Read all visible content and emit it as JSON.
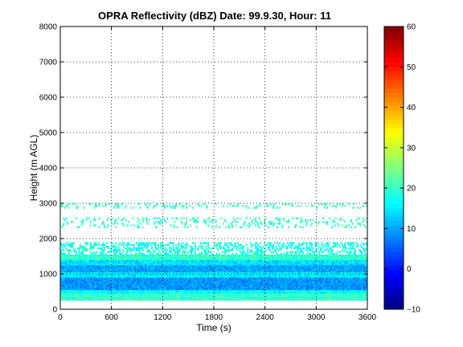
{
  "chart_data": {
    "type": "heatmap",
    "title": "OPRA Reflectivity (dBZ)  Date: 99.9.30, Hour: 11",
    "xlabel": "Time (s)",
    "ylabel": "Height (m AGL)",
    "xlim": [
      0,
      3600
    ],
    "ylim": [
      0,
      8000
    ],
    "xticks": [
      0,
      600,
      1200,
      1800,
      2400,
      3000,
      3600
    ],
    "yticks": [
      0,
      1000,
      2000,
      3000,
      4000,
      5000,
      6000,
      7000,
      8000
    ],
    "grid": true,
    "colorbar": {
      "min": -10,
      "max": 60,
      "ticks": [
        -10,
        0,
        10,
        20,
        30,
        40,
        50,
        60
      ],
      "colormap": "jet",
      "location": "right"
    },
    "height_layers_m_dbz": [
      {
        "bottom": 0,
        "top": 250,
        "dbz": null
      },
      {
        "bottom": 250,
        "top": 450,
        "dbz": 20
      },
      {
        "bottom": 450,
        "top": 550,
        "dbz": 16
      },
      {
        "bottom": 550,
        "top": 900,
        "dbz": 9
      },
      {
        "bottom": 900,
        "top": 1050,
        "dbz": 15
      },
      {
        "bottom": 1050,
        "top": 1250,
        "dbz": 10
      },
      {
        "bottom": 1250,
        "top": 1400,
        "dbz": 14
      },
      {
        "bottom": 1400,
        "top": 1550,
        "dbz": 20
      },
      {
        "bottom": 1550,
        "top": 1900,
        "dbz": 18,
        "coverage": "patchy"
      },
      {
        "bottom": 2300,
        "top": 2600,
        "dbz": 20,
        "coverage": "sparse"
      },
      {
        "bottom": 2850,
        "top": 3000,
        "dbz": 20,
        "coverage": "sparse"
      }
    ]
  }
}
